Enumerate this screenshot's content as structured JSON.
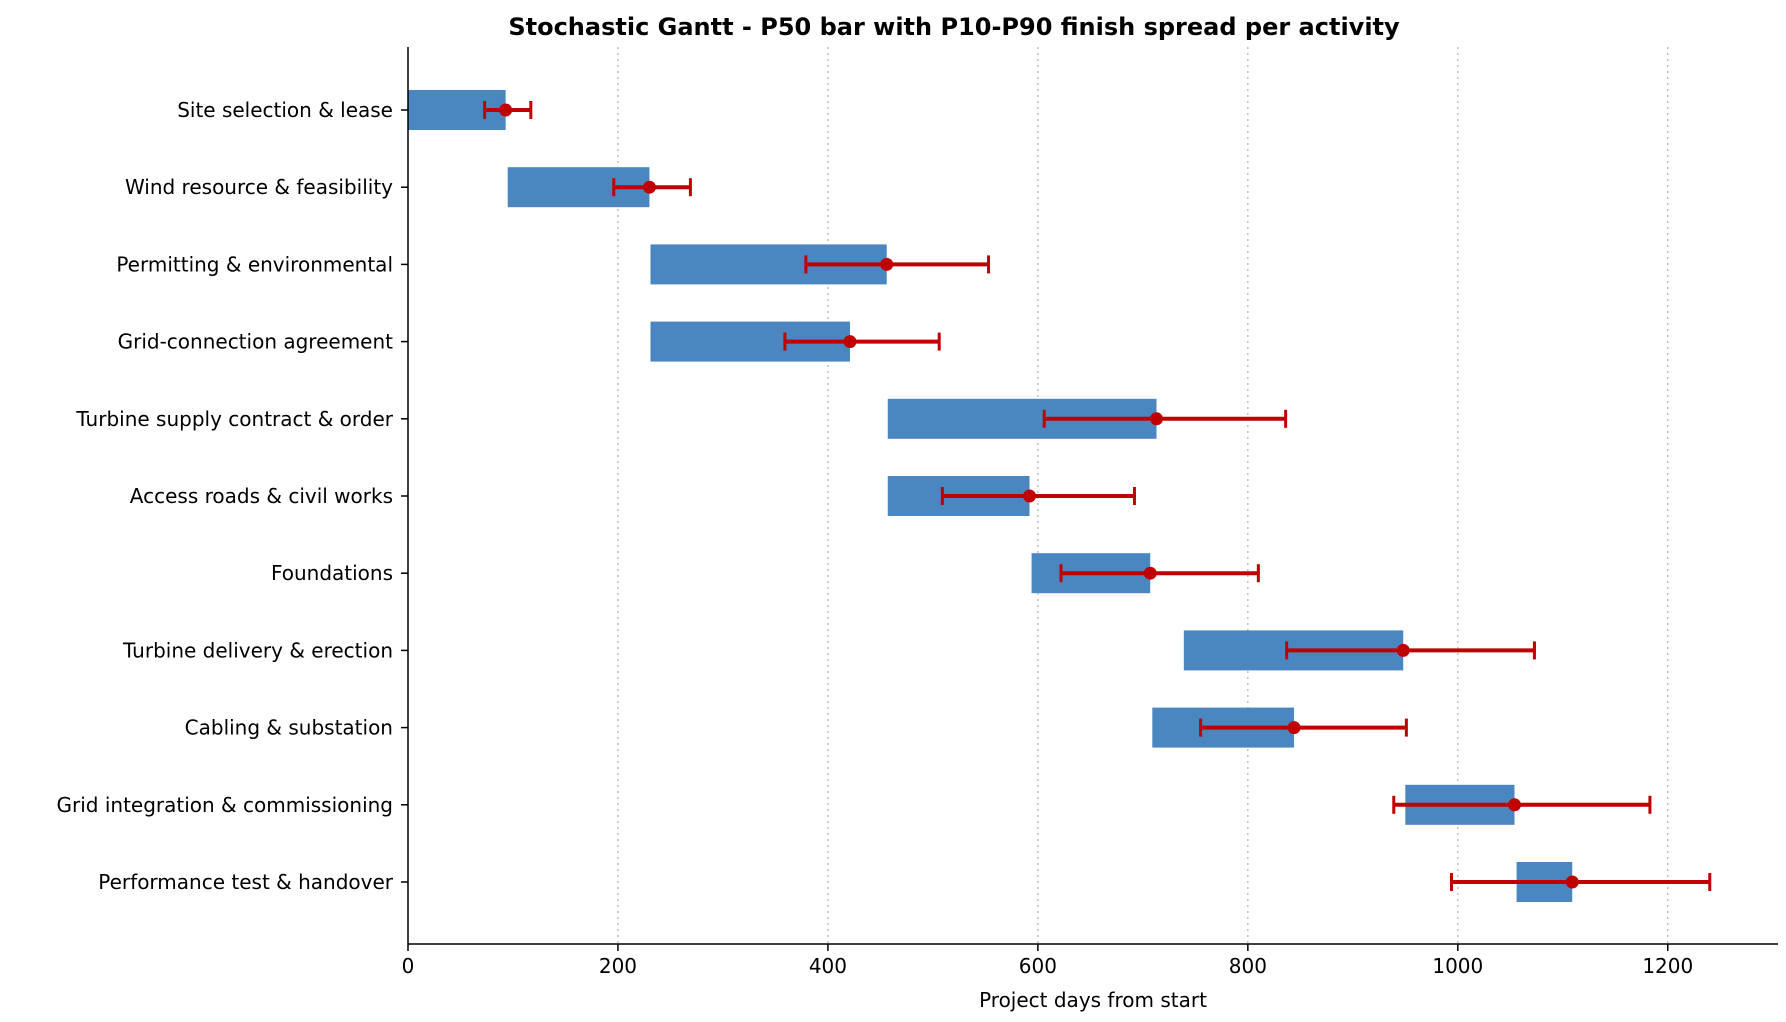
{
  "chart_data": {
    "type": "gantt",
    "title": "Stochastic Gantt - P50 bar with P10-P90 finish spread per activity",
    "xlabel": "Project days from start",
    "ylabel": "",
    "xlim": [
      0,
      1305
    ],
    "xticks": [
      0,
      200,
      400,
      600,
      800,
      1000,
      1200
    ],
    "grid": "x-dotted",
    "colors": {
      "bar": "#4a87c0",
      "spread": "#c00000"
    },
    "activities": [
      {
        "name": "Site selection & lease",
        "start": 0,
        "p50_finish": 93,
        "p10_finish": 73,
        "p90_finish": 117
      },
      {
        "name": "Wind resource & feasibility",
        "start": 95,
        "p50_finish": 230,
        "p10_finish": 196,
        "p90_finish": 269
      },
      {
        "name": "Permitting & environmental",
        "start": 231,
        "p50_finish": 456,
        "p10_finish": 379,
        "p90_finish": 553
      },
      {
        "name": "Grid-connection agreement",
        "start": 231,
        "p50_finish": 421,
        "p10_finish": 359,
        "p90_finish": 506
      },
      {
        "name": "Turbine supply contract & order",
        "start": 457,
        "p50_finish": 713,
        "p10_finish": 606,
        "p90_finish": 836
      },
      {
        "name": "Access roads & civil works",
        "start": 457,
        "p50_finish": 592,
        "p10_finish": 509,
        "p90_finish": 692
      },
      {
        "name": "Foundations",
        "start": 594,
        "p50_finish": 707,
        "p10_finish": 622,
        "p90_finish": 810
      },
      {
        "name": "Turbine delivery & erection",
        "start": 739,
        "p50_finish": 948,
        "p10_finish": 837,
        "p90_finish": 1073
      },
      {
        "name": "Cabling & substation",
        "start": 709,
        "p50_finish": 844,
        "p10_finish": 755,
        "p90_finish": 951
      },
      {
        "name": "Grid integration & commissioning",
        "start": 950,
        "p50_finish": 1054,
        "p10_finish": 939,
        "p90_finish": 1183
      },
      {
        "name": "Performance test & handover",
        "start": 1056,
        "p50_finish": 1109,
        "p10_finish": 994,
        "p90_finish": 1240
      }
    ]
  }
}
